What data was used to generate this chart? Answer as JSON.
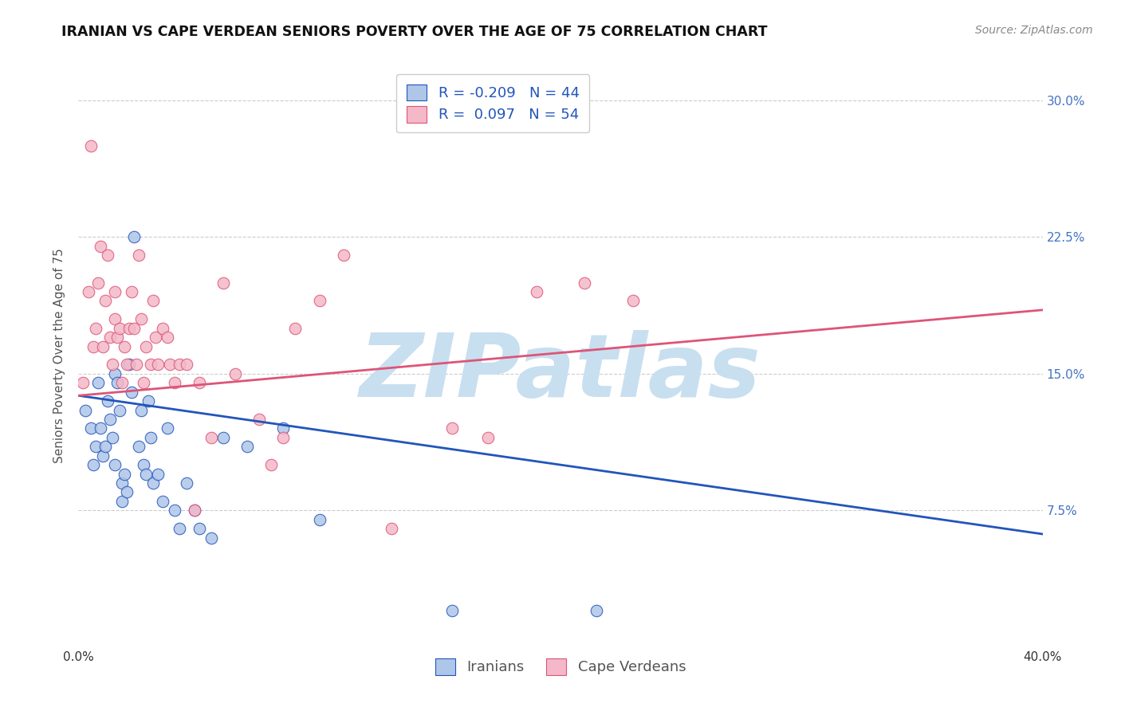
{
  "title": "IRANIAN VS CAPE VERDEAN SENIORS POVERTY OVER THE AGE OF 75 CORRELATION CHART",
  "source": "Source: ZipAtlas.com",
  "ylabel": "Seniors Poverty Over the Age of 75",
  "ytick_labels": [
    "7.5%",
    "15.0%",
    "22.5%",
    "30.0%"
  ],
  "ytick_values": [
    0.075,
    0.15,
    0.225,
    0.3
  ],
  "xlim": [
    0.0,
    0.4
  ],
  "ylim": [
    0.0,
    0.32
  ],
  "legend_r_iranian": "-0.209",
  "legend_n_iranian": "44",
  "legend_r_capeverdean": "0.097",
  "legend_n_capeverdean": "54",
  "color_iranian": "#aec6e8",
  "color_capeverdean": "#f4b8c8",
  "color_line_iranian": "#2255bb",
  "color_line_capeverdean": "#dd5577",
  "iranians_line_x0": 0.0,
  "iranians_line_y0": 0.138,
  "iranians_line_x1": 0.4,
  "iranians_line_y1": 0.062,
  "capeverdeans_line_x0": 0.0,
  "capeverdeans_line_y0": 0.138,
  "capeverdeans_line_x1": 0.4,
  "capeverdeans_line_y1": 0.185,
  "iranians_x": [
    0.003,
    0.005,
    0.006,
    0.007,
    0.008,
    0.009,
    0.01,
    0.011,
    0.012,
    0.013,
    0.014,
    0.015,
    0.015,
    0.016,
    0.017,
    0.018,
    0.018,
    0.019,
    0.02,
    0.021,
    0.022,
    0.023,
    0.025,
    0.026,
    0.027,
    0.028,
    0.029,
    0.03,
    0.031,
    0.033,
    0.035,
    0.037,
    0.04,
    0.042,
    0.045,
    0.048,
    0.05,
    0.055,
    0.06,
    0.07,
    0.085,
    0.1,
    0.155,
    0.215
  ],
  "iranians_y": [
    0.13,
    0.12,
    0.1,
    0.11,
    0.145,
    0.12,
    0.105,
    0.11,
    0.135,
    0.125,
    0.115,
    0.15,
    0.1,
    0.145,
    0.13,
    0.08,
    0.09,
    0.095,
    0.085,
    0.155,
    0.14,
    0.225,
    0.11,
    0.13,
    0.1,
    0.095,
    0.135,
    0.115,
    0.09,
    0.095,
    0.08,
    0.12,
    0.075,
    0.065,
    0.09,
    0.075,
    0.065,
    0.06,
    0.115,
    0.11,
    0.12,
    0.07,
    0.02,
    0.02
  ],
  "capeverdeans_x": [
    0.002,
    0.004,
    0.005,
    0.006,
    0.007,
    0.008,
    0.009,
    0.01,
    0.011,
    0.012,
    0.013,
    0.014,
    0.015,
    0.015,
    0.016,
    0.017,
    0.018,
    0.019,
    0.02,
    0.021,
    0.022,
    0.023,
    0.024,
    0.025,
    0.026,
    0.027,
    0.028,
    0.03,
    0.031,
    0.032,
    0.033,
    0.035,
    0.037,
    0.038,
    0.04,
    0.042,
    0.045,
    0.048,
    0.05,
    0.055,
    0.06,
    0.065,
    0.075,
    0.08,
    0.085,
    0.09,
    0.1,
    0.11,
    0.13,
    0.155,
    0.17,
    0.19,
    0.21,
    0.23
  ],
  "capeverdeans_y": [
    0.145,
    0.195,
    0.275,
    0.165,
    0.175,
    0.2,
    0.22,
    0.165,
    0.19,
    0.215,
    0.17,
    0.155,
    0.18,
    0.195,
    0.17,
    0.175,
    0.145,
    0.165,
    0.155,
    0.175,
    0.195,
    0.175,
    0.155,
    0.215,
    0.18,
    0.145,
    0.165,
    0.155,
    0.19,
    0.17,
    0.155,
    0.175,
    0.17,
    0.155,
    0.145,
    0.155,
    0.155,
    0.075,
    0.145,
    0.115,
    0.2,
    0.15,
    0.125,
    0.1,
    0.115,
    0.175,
    0.19,
    0.215,
    0.065,
    0.12,
    0.115,
    0.195,
    0.2,
    0.19
  ],
  "background_color": "#ffffff",
  "watermark_text": "ZIPatlas",
  "watermark_color": "#c8dff0",
  "title_fontsize": 12.5,
  "axis_label_fontsize": 11,
  "tick_fontsize": 11,
  "legend_fontsize": 13,
  "source_fontsize": 10
}
